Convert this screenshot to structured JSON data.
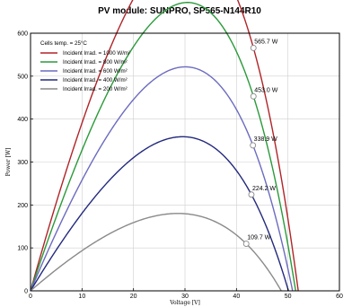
{
  "chart_data": {
    "type": "line",
    "title": "PV module:  SUNPRO,  SP565-N144R10",
    "xlabel": "Voltage [V]",
    "ylabel": "Power [W]",
    "xlim": [
      0,
      60
    ],
    "ylim": [
      0,
      600
    ],
    "xticks": [
      0,
      10,
      20,
      30,
      40,
      50,
      60
    ],
    "yticks": [
      0,
      100,
      200,
      300,
      400,
      500,
      600
    ],
    "grid": true,
    "legend_position": "top-left",
    "legend_header": "Cells temp. = 25°C",
    "series": [
      {
        "name": "Incident Irrad. = 1000 W/m²",
        "color": "#b02428",
        "voc": 52.0,
        "mpp": {
          "v": 43.3,
          "p": 565.7
        },
        "label": "565.7 W"
      },
      {
        "name": "Incident Irrad. = 800 W/m²",
        "color": "#2a9a3a",
        "voc": 51.5,
        "mpp": {
          "v": 43.3,
          "p": 453.0
        },
        "label": "453.0 W"
      },
      {
        "name": "Incident Irrad. = 600 W/m²",
        "color": "#6b6bc0",
        "voc": 50.9,
        "mpp": {
          "v": 43.2,
          "p": 338.9
        },
        "label": "338.9 W"
      },
      {
        "name": "Incident Irrad. = 400 W/m²",
        "color": "#232a7d",
        "voc": 50.1,
        "mpp": {
          "v": 42.9,
          "p": 224.2
        },
        "label": "224.2 W"
      },
      {
        "name": "Incident Irrad. = 200 W/m²",
        "color": "#8a8a8a",
        "voc": 48.7,
        "mpp": {
          "v": 41.9,
          "p": 109.7
        },
        "label": "109.7 W"
      }
    ]
  }
}
